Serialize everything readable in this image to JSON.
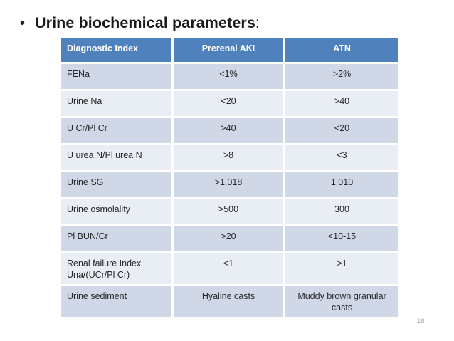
{
  "page": {
    "bullet": "•",
    "title": "Urine biochemical parameters",
    "title_colon": ":",
    "page_number": "16"
  },
  "table": {
    "columns": [
      "Diagnostic Index",
      "Prerenal AKI",
      "ATN"
    ],
    "rows": [
      {
        "index": "FENa",
        "prerenal": "<1%",
        "atn": ">2%"
      },
      {
        "index": "Urine Na",
        "prerenal": "<20",
        "atn": ">40"
      },
      {
        "index": "U Cr/Pl Cr",
        "prerenal": ">40",
        "atn": "<20"
      },
      {
        "index": "U urea N/Pl urea N",
        "prerenal": ">8",
        "atn": "<3"
      },
      {
        "index": "Urine SG",
        "prerenal": ">1.018",
        "atn": "1.010"
      },
      {
        "index": "Urine osmolality",
        "prerenal": ">500",
        "atn": "300"
      },
      {
        "index": "Pl BUN/Cr",
        "prerenal": ">20",
        "atn": "<10-15"
      },
      {
        "index": "Renal failure Index Una/(UCr/Pl Cr)",
        "prerenal": "<1",
        "atn": ">1"
      },
      {
        "index": "Urine sediment",
        "prerenal": "Hyaline casts",
        "atn": "Muddy brown granular casts"
      }
    ]
  },
  "colors": {
    "header_bg": "#4f81bd",
    "header_text": "#ffffff",
    "band_dark": "#d0d8e8",
    "band_light": "#e9edf4",
    "body_text": "#262626",
    "page_number": "#a6a6a6"
  }
}
